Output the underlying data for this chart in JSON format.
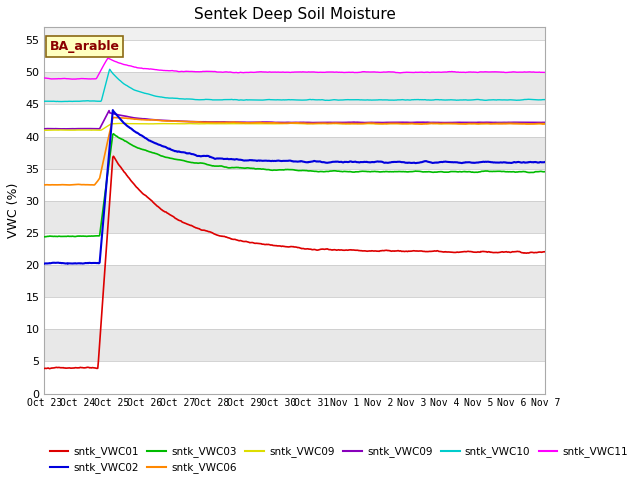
{
  "title": "Sentek Deep Soil Moisture",
  "ylabel": "VWC (%)",
  "ylim": [
    0,
    57
  ],
  "yticks": [
    0,
    5,
    10,
    15,
    20,
    25,
    30,
    35,
    40,
    45,
    50,
    55
  ],
  "annotation": "BA_arable",
  "fig_bg": "#ffffff",
  "plot_bg_light": "#f0f0f0",
  "plot_bg_dark": "#e0e0e0",
  "x_labels": [
    "Oct 23",
    "Oct 24",
    "Oct 25",
    "Oct 26",
    "Oct 27",
    "Oct 28",
    "Oct 29",
    "Oct 30",
    "Oct 31",
    "Nov 1",
    "Nov 2",
    "Nov 3",
    "Nov 4",
    "Nov 5",
    "Nov 6",
    "Nov 7"
  ],
  "series_colors": {
    "sntk_VWC01": "#dd0000",
    "sntk_VWC02": "#0000dd",
    "sntk_VWC03": "#00bb00",
    "sntk_VWC06": "#ff8800",
    "sntk_VWC09y": "#dddd00",
    "sntk_VWC09p": "#8800bb",
    "sntk_VWC10": "#00cccc",
    "sntk_VWC11": "#ff00ff"
  },
  "legend_labels": [
    "sntk_VWC01",
    "sntk_VWC02",
    "sntk_VWC03",
    "sntk_VWC06",
    "sntk_VWC09",
    "sntk_VWC09",
    "sntk_VWC10",
    "sntk_VWC11"
  ],
  "legend_colors": [
    "#dd0000",
    "#0000dd",
    "#00bb00",
    "#ff8800",
    "#dddd00",
    "#8800bb",
    "#00cccc",
    "#ff00ff"
  ]
}
